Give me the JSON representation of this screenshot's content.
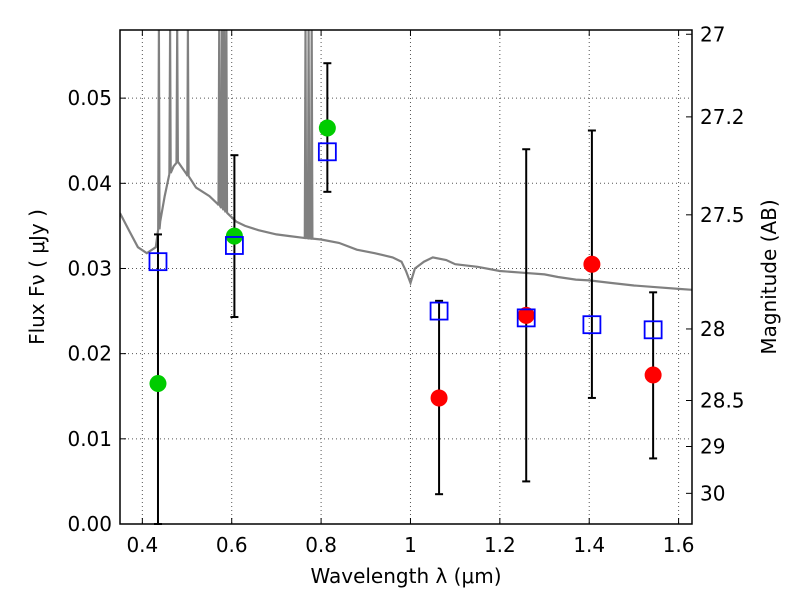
{
  "chart_data": {
    "type": "scatter",
    "xlabel": "Wavelength  λ (μm)",
    "ylabel": "Flux  Fν  ( μJy )",
    "ylabel_right": "Magnitude (AB)",
    "xlim": [
      0.35,
      1.63
    ],
    "ylim": [
      0.0,
      0.058
    ],
    "grid": true,
    "x_ticks": [
      0.4,
      0.6,
      0.8,
      1.0,
      1.2,
      1.4,
      1.6
    ],
    "x_tick_labels": [
      "0.4",
      "0.6",
      "0.8",
      "1",
      "1.2",
      "1.4",
      "1.6"
    ],
    "y_ticks": [
      0.0,
      0.01,
      0.02,
      0.03,
      0.04,
      0.05
    ],
    "y_tick_labels": [
      "0.00",
      "0.01",
      "0.02",
      "0.03",
      "0.04",
      "0.05"
    ],
    "right_ticks": [
      {
        "label": "27",
        "flux": 0.0575
      },
      {
        "label": "27.2",
        "flux": 0.0478
      },
      {
        "label": "27.5",
        "flux": 0.0363
      },
      {
        "label": "28",
        "flux": 0.0229
      },
      {
        "label": "28.5",
        "flux": 0.0145
      },
      {
        "label": "29",
        "flux": 0.0091
      },
      {
        "label": "30",
        "flux": 0.0036
      }
    ],
    "series": [
      {
        "kind": "observed_detected",
        "color": "#00cc00",
        "points": [
          {
            "x": 0.435,
            "y": 0.0165
          },
          {
            "x": 0.606,
            "y": 0.0338
          },
          {
            "x": 0.814,
            "y": 0.0465
          }
        ]
      },
      {
        "kind": "observed_upper",
        "color": "#ff0000",
        "points": [
          {
            "x": 1.064,
            "y": 0.0148
          },
          {
            "x": 1.259,
            "y": 0.0245
          },
          {
            "x": 1.406,
            "y": 0.0305
          },
          {
            "x": 1.543,
            "y": 0.0175
          }
        ]
      },
      {
        "kind": "model_photometry",
        "color": "#0000ff",
        "points": [
          {
            "x": 0.435,
            "y": 0.0308
          },
          {
            "x": 0.606,
            "y": 0.0327
          },
          {
            "x": 0.814,
            "y": 0.0437
          },
          {
            "x": 1.064,
            "y": 0.025
          },
          {
            "x": 1.259,
            "y": 0.0242
          },
          {
            "x": 1.406,
            "y": 0.0234
          },
          {
            "x": 1.543,
            "y": 0.0228
          }
        ]
      }
    ],
    "error_bars": [
      {
        "x": 0.435,
        "low": 0.0,
        "high": 0.034
      },
      {
        "x": 0.606,
        "low": 0.0243,
        "high": 0.0433
      },
      {
        "x": 0.814,
        "low": 0.039,
        "high": 0.0541
      },
      {
        "x": 1.064,
        "low": 0.0035,
        "high": 0.0262
      },
      {
        "x": 1.259,
        "low": 0.005,
        "high": 0.044
      },
      {
        "x": 1.406,
        "low": 0.0148,
        "high": 0.0462
      },
      {
        "x": 1.543,
        "low": 0.0077,
        "high": 0.0272
      }
    ],
    "sed_model": {
      "color": "#808080",
      "continuum": [
        [
          0.35,
          0.0365
        ],
        [
          0.37,
          0.0345
        ],
        [
          0.39,
          0.0325
        ],
        [
          0.41,
          0.0318
        ],
        [
          0.43,
          0.0325
        ],
        [
          0.44,
          0.0355
        ],
        [
          0.45,
          0.0385
        ],
        [
          0.46,
          0.041
        ],
        [
          0.47,
          0.042
        ],
        [
          0.48,
          0.0425
        ],
        [
          0.5,
          0.041
        ],
        [
          0.52,
          0.0395
        ],
        [
          0.55,
          0.0385
        ],
        [
          0.57,
          0.0375
        ],
        [
          0.59,
          0.0365
        ],
        [
          0.61,
          0.0355
        ],
        [
          0.63,
          0.035
        ],
        [
          0.66,
          0.0345
        ],
        [
          0.7,
          0.034
        ],
        [
          0.73,
          0.0338
        ],
        [
          0.76,
          0.0336
        ],
        [
          0.8,
          0.0334
        ],
        [
          0.84,
          0.033
        ],
        [
          0.88,
          0.0322
        ],
        [
          0.92,
          0.0318
        ],
        [
          0.96,
          0.0313
        ],
        [
          0.98,
          0.0308
        ],
        [
          0.99,
          0.0297
        ],
        [
          1.0,
          0.0283
        ],
        [
          1.01,
          0.03
        ],
        [
          1.03,
          0.0308
        ],
        [
          1.05,
          0.0313
        ],
        [
          1.08,
          0.031
        ],
        [
          1.1,
          0.0305
        ],
        [
          1.15,
          0.0302
        ],
        [
          1.2,
          0.0297
        ],
        [
          1.25,
          0.0295
        ],
        [
          1.3,
          0.0293
        ],
        [
          1.33,
          0.029
        ],
        [
          1.37,
          0.0287
        ],
        [
          1.4,
          0.0286
        ],
        [
          1.45,
          0.0283
        ],
        [
          1.5,
          0.028
        ],
        [
          1.55,
          0.0278
        ],
        [
          1.6,
          0.0276
        ],
        [
          1.63,
          0.0275
        ]
      ],
      "emission_lines": [
        {
          "x": 0.437,
          "peak": 0.058
        },
        {
          "x": 0.462,
          "peak": 0.058
        },
        {
          "x": 0.478,
          "peak": 0.058
        },
        {
          "x": 0.502,
          "peak": 0.058
        },
        {
          "x": 0.572,
          "peak": 0.058
        },
        {
          "x": 0.578,
          "peak": 0.058
        },
        {
          "x": 0.583,
          "peak": 0.058
        },
        {
          "x": 0.588,
          "peak": 0.058
        },
        {
          "x": 0.765,
          "peak": 0.058
        },
        {
          "x": 0.772,
          "peak": 0.058
        },
        {
          "x": 0.779,
          "peak": 0.058
        }
      ]
    }
  }
}
